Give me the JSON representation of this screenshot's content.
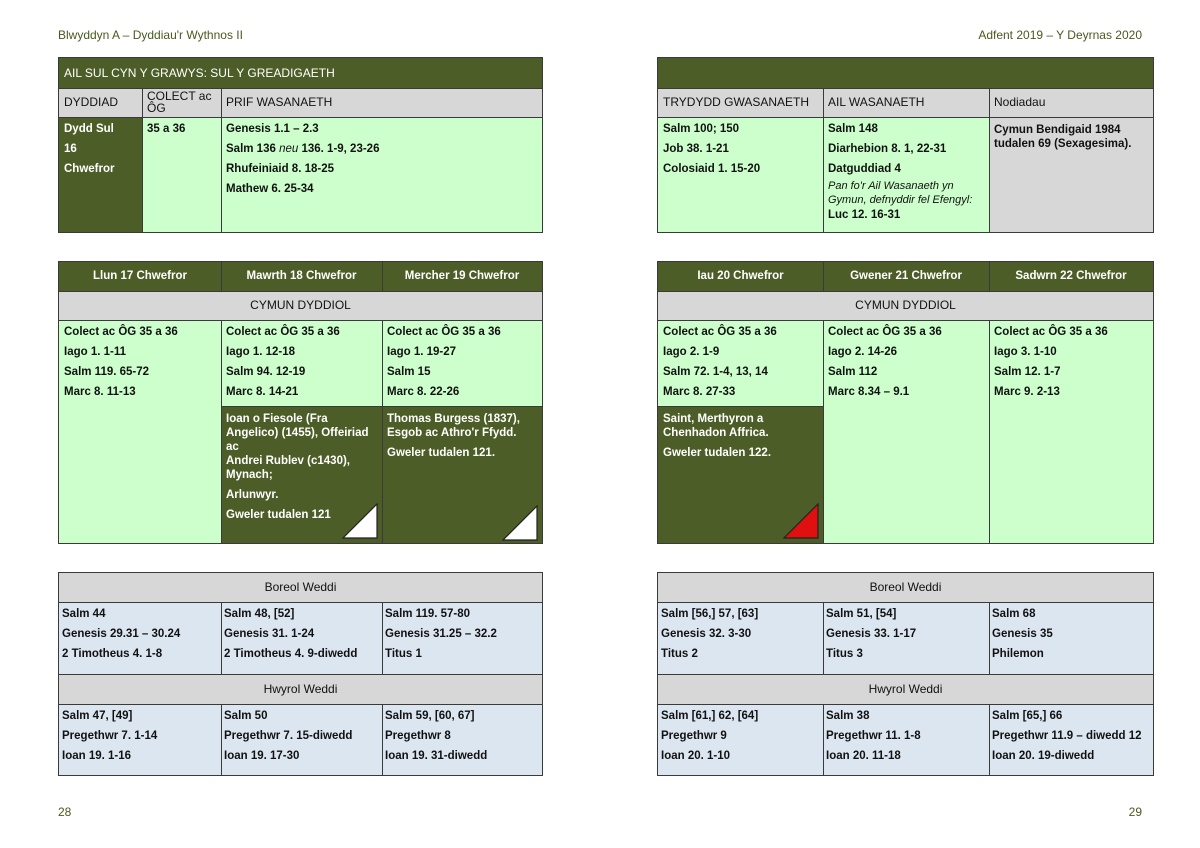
{
  "header": {
    "left": "Blwyddyn A – Dyddiau'r Wythnos II",
    "right": "Adfent 2019 – Y Deyrnas 2020"
  },
  "page_numbers": {
    "left": "28",
    "right": "29"
  },
  "sunday": {
    "title": "AIL SUL CYN Y GRAWYS: SUL Y GREADIGAETH",
    "col_headers": {
      "dyddiad": "DYDDIAD",
      "colect": "COLECT ac ÔG",
      "prif": "PRIF WASANAETH",
      "trydydd": "TRYDYDD GWASANAETH",
      "ail": "AIL WASANAETH",
      "nodiadau": "Nodiadau"
    },
    "date_lines": [
      "Dydd Sul",
      "16",
      "Chwefror"
    ],
    "colect": "35 a 36",
    "prif": [
      "Genesis 1.1 – 2.3",
      "Salm 136",
      "neu",
      "136. 1-9, 23-26",
      "Rhufeiniaid 8. 18-25",
      "Mathew 6. 25-34"
    ],
    "trydydd": [
      "Salm 100; 150",
      "Job 38. 1-21",
      "Colosiaid 1. 15-20"
    ],
    "ail": [
      "Salm 148",
      "Diarhebion 8. 1, 22-31",
      "Datguddiad 4",
      "Pan fo'r Ail Wasanaeth yn Gymun, defnyddir fel Efengyl:",
      "Luc 12. 16-31"
    ],
    "nodiadau": "Cymun Bendigaid 1984 tudalen 69 (Sexagesima)."
  },
  "weekdays": {
    "section_label": "CYMUN DYDDIOL",
    "days": [
      {
        "name": "Llun 17 Chwefror",
        "readings": [
          "Colect ac ÔG 35 a 36",
          "Iago 1. 1-11",
          "Salm 119. 65-72",
          "Marc 8. 11-13"
        ]
      },
      {
        "name": "Mawrth 18 Chwefror",
        "readings": [
          "Colect ac ÔG 35 a 36",
          "Iago 1. 12-18",
          "Salm 94. 12-19",
          "Marc 8. 14-21"
        ],
        "commemoration": [
          "Ioan o Fiesole (Fra Angelico) (1455), Offeiriad",
          "ac",
          "Andrei Rublev (c1430), Mynach;",
          "Arlunwyr.",
          "Gweler tudalen 121"
        ]
      },
      {
        "name": "Mercher 19 Chwefror",
        "readings": [
          "Colect ac ÔG 35 a 36",
          "Iago 1. 19-27",
          "Salm 15",
          "Marc 8. 22-26"
        ],
        "commemoration": [
          "Thomas Burgess (1837), Esgob ac Athro'r Ffydd.",
          "Gweler tudalen 121."
        ]
      },
      {
        "name": "Iau 20 Chwefror",
        "readings": [
          "Colect ac ÔG 35 a 36",
          "Iago 2. 1-9",
          "Salm 72. 1-4, 13, 14",
          "Marc 8. 27-33"
        ],
        "commemoration": [
          "Saint, Merthyron a Chenhadon Affrica.",
          "Gweler tudalen 122."
        ]
      },
      {
        "name": "Gwener 21 Chwefror",
        "readings": [
          "Colect ac ÔG 35 a 36",
          "Iago 2. 14-26",
          "Salm 112",
          "Marc 8.34 – 9.1"
        ]
      },
      {
        "name": "Sadwrn 22 Chwefror",
        "readings": [
          "Colect ac ÔG 35 a 36",
          "Iago 3. 1-10",
          "Salm 12. 1-7",
          "Marc 9. 2-13"
        ]
      }
    ]
  },
  "offices": {
    "morning_label": "Boreol Weddi",
    "evening_label": "Hwyrol Weddi",
    "morning": [
      [
        "Salm 44",
        "Genesis 29.31 – 30.24",
        "2 Timotheus 4. 1-8"
      ],
      [
        "Salm 48, [52]",
        "Genesis 31. 1-24",
        "2 Timotheus 4. 9-diwedd"
      ],
      [
        "Salm 119. 57-80",
        "Genesis 31.25 – 32.2",
        "Titus 1"
      ],
      [
        "Salm [56,] 57, [63]",
        "Genesis 32. 3-30",
        "Titus 2"
      ],
      [
        "Salm 51, [54]",
        "Genesis 33. 1-17",
        "Titus 3"
      ],
      [
        "Salm 68",
        "Genesis 35",
        "Philemon"
      ]
    ],
    "evening": [
      [
        "Salm 47, [49]",
        "Pregethwr 7. 1-14",
        "Ioan 19. 1-16"
      ],
      [
        "Salm 50",
        "Pregethwr 7. 15-diwedd",
        "Ioan 19. 17-30"
      ],
      [
        "Salm 59, [60, 67]",
        "Pregethwr 8",
        "Ioan 19. 31-diwedd"
      ],
      [
        "Salm [61,] 62, [64]",
        "Pregethwr 9",
        "Ioan 20. 1-10"
      ],
      [
        "Salm 38",
        "Pregethwr 11. 1-8",
        "Ioan 20. 11-18"
      ],
      [
        "Salm [65,] 66",
        "Pregethwr 11.9 – diwedd 12",
        "Ioan 20. 19-diwedd"
      ]
    ]
  },
  "colors": {
    "olive": "#4d5d27",
    "light_green": "#ccffcc",
    "grey": "#d7d7d7",
    "light_blue": "#dce6f1",
    "red_marker": "#e01010"
  }
}
